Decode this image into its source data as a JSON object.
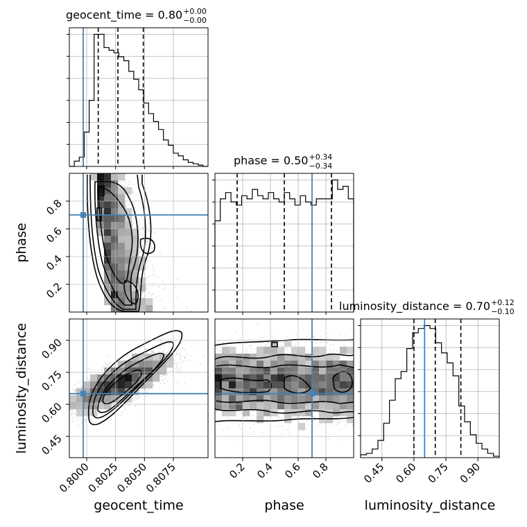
{
  "chart_data": {
    "type": "corner",
    "parameters": [
      "geocent_time",
      "phase",
      "luminosity_distance"
    ],
    "truths": {
      "geocent_time": 0.7997,
      "phase": 0.7,
      "luminosity_distance": 0.65
    },
    "ranges": {
      "geocent_time": [
        0.7985,
        0.8105
      ],
      "phase": [
        0.0,
        1.0
      ],
      "luminosity_distance": [
        0.35,
        1.0
      ]
    },
    "titles": [
      {
        "param": "geocent_time",
        "label": "geocent_time = 0.80",
        "plus": "+0.00",
        "minus": "−0.00"
      },
      {
        "param": "phase",
        "label": "phase = 0.50",
        "plus": "+0.34",
        "minus": "−0.34"
      },
      {
        "param": "luminosity_distance",
        "label": "luminosity_distance = 0.70",
        "plus": "+0.12",
        "minus": "−0.10"
      }
    ],
    "quantiles": {
      "geocent_time": [
        0.801,
        0.8027,
        0.8049
      ],
      "phase": [
        0.16,
        0.5,
        0.84
      ],
      "luminosity_distance": [
        0.6,
        0.7,
        0.82
      ]
    },
    "ticks": {
      "geocent_time": [
        "0.8000",
        "0.8025",
        "0.8050",
        "0.8075"
      ],
      "phase": [
        "0.2",
        "0.4",
        "0.6",
        "0.8"
      ],
      "luminosity_distance": [
        "0.45",
        "0.60",
        "0.75",
        "0.90"
      ]
    },
    "tick_values": {
      "geocent_time": [
        0.8,
        0.8025,
        0.805,
        0.8075
      ],
      "phase": [
        0.2,
        0.4,
        0.6,
        0.8
      ],
      "luminosity_distance": [
        0.45,
        0.6,
        0.75,
        0.9
      ]
    },
    "axis_labels": {
      "geocent_time": "geocent_time",
      "phase": "phase",
      "luminosity_distance": "luminosity_distance"
    },
    "hist_counts": {
      "geocent_time": [
        0,
        4,
        7,
        26,
        50,
        100,
        100,
        90,
        88,
        86,
        83,
        80,
        72,
        66,
        58,
        48,
        40,
        34,
        28,
        20,
        16,
        10,
        8,
        5,
        3,
        2,
        1,
        0
      ],
      "phase": [
        58,
        72,
        76,
        70,
        68,
        74,
        72,
        78,
        74,
        72,
        76,
        72,
        70,
        76,
        72,
        68,
        74,
        70,
        68,
        72,
        72,
        72,
        84,
        78,
        80,
        72
      ],
      "luminosity_distance": [
        2,
        3,
        6,
        12,
        24,
        40,
        55,
        60,
        76,
        87,
        90,
        92,
        90,
        80,
        73,
        66,
        57,
        36,
        25,
        16,
        10,
        6,
        3,
        1
      ]
    },
    "grid": true,
    "color_truth": "#4682b4",
    "color_hist": "#000000",
    "color_contour": "#000000"
  }
}
